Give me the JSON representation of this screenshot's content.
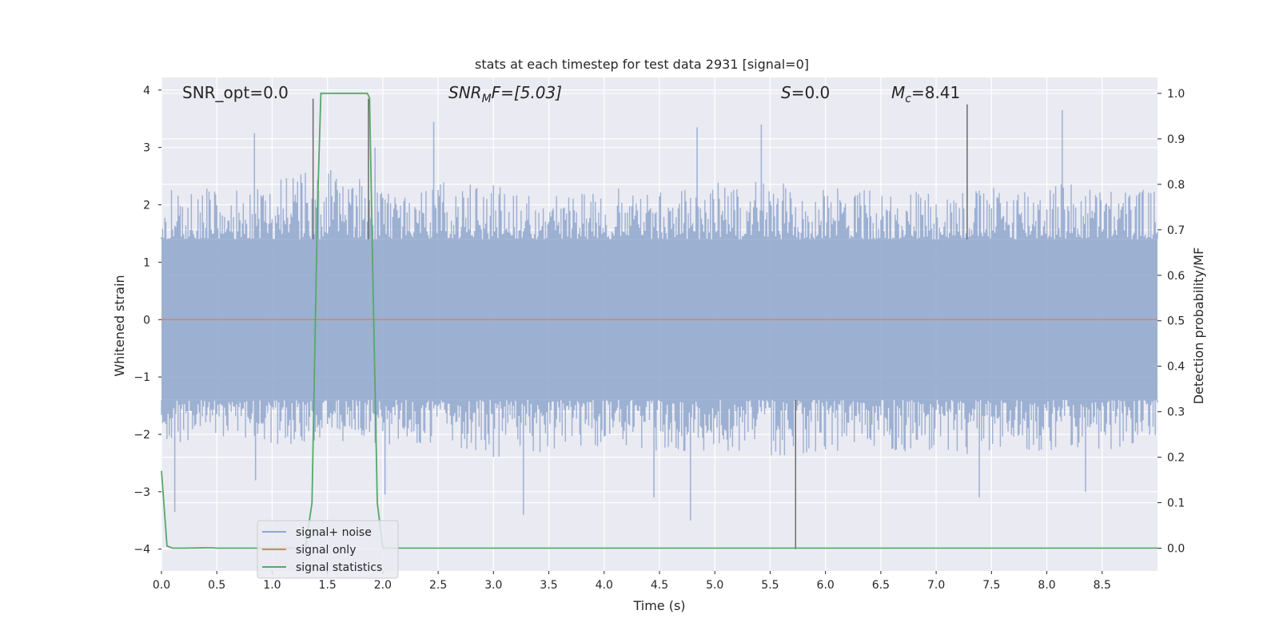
{
  "chart_data": {
    "type": "line",
    "title": "stats at each timestep for test data 2931 [signal=0]",
    "xlabel": "Time (s)",
    "ylabel_left": "Whitened strain",
    "ylabel_right": "Detection probability/MF",
    "xlim": [
      0.0,
      9.0
    ],
    "ylim_left": [
      -4.38,
      4.22
    ],
    "ylim_right": [
      -0.05,
      1.035
    ],
    "grid": true,
    "legend_position": "lower-left",
    "x_ticks": [
      0.0,
      0.5,
      1.0,
      1.5,
      2.0,
      2.5,
      3.0,
      3.5,
      4.0,
      4.5,
      5.0,
      5.5,
      6.0,
      6.5,
      7.0,
      7.5,
      8.0,
      8.5
    ],
    "x_tick_labels": [
      "0.0",
      "0.5",
      "1.0",
      "1.5",
      "2.0",
      "2.5",
      "3.0",
      "3.5",
      "4.0",
      "4.5",
      "5.0",
      "5.5",
      "6.0",
      "6.5",
      "7.0",
      "7.5",
      "8.0",
      "8.5"
    ],
    "y_left_ticks": [
      -4,
      -3,
      -2,
      -1,
      0,
      1,
      2,
      3,
      4
    ],
    "y_left_tick_labels": [
      "−4",
      "−3",
      "−2",
      "−1",
      "0",
      "1",
      "2",
      "3",
      "4"
    ],
    "y_right_ticks": [
      0.0,
      0.1,
      0.2,
      0.3,
      0.4,
      0.5,
      0.6,
      0.7,
      0.8,
      0.9,
      1.0
    ],
    "y_right_tick_labels": [
      "0.0",
      "0.1",
      "0.2",
      "0.3",
      "0.4",
      "0.5",
      "0.6",
      "0.7",
      "0.8",
      "0.9",
      "1.0"
    ],
    "annotations": {
      "snr_opt": "SNR_opt=0.0",
      "snr_mf_main": "SNR",
      "snr_mf_sub": "M",
      "snr_mf_rest": "F=[5.03]",
      "s_var": "S",
      "s_rest": "=0.0",
      "mc_main": "M",
      "mc_sub": "c",
      "mc_rest": "=8.41"
    },
    "series": [
      {
        "name": "signal+ noise",
        "axis": "left",
        "color": "#8fa6cd",
        "envelope": {
          "x": [
            0.0,
            0.5,
            1.0,
            1.5,
            2.0,
            2.5,
            3.0,
            3.5,
            4.0,
            4.5,
            5.0,
            5.5,
            6.0,
            6.5,
            7.0,
            7.5,
            8.0,
            8.5,
            9.0
          ],
          "upper": [
            2.3,
            2.3,
            2.4,
            2.7,
            2.3,
            2.4,
            2.4,
            2.2,
            2.3,
            2.3,
            2.4,
            2.4,
            2.3,
            2.3,
            2.3,
            2.3,
            2.5,
            2.3,
            2.3
          ],
          "lower": [
            -2.2,
            -2.1,
            -2.2,
            -2.1,
            -2.2,
            -2.2,
            -2.4,
            -2.3,
            -2.2,
            -2.3,
            -2.3,
            -2.4,
            -2.3,
            -2.3,
            -2.3,
            -2.4,
            -2.3,
            -2.3,
            -2.2
          ],
          "inner_upper": 1.4,
          "inner_lower": -1.4
        },
        "peaks": [
          {
            "x": 0.12,
            "y": -3.35
          },
          {
            "x": 0.84,
            "y": 3.25
          },
          {
            "x": 0.85,
            "y": -2.8
          },
          {
            "x": 1.37,
            "y": 3.85
          },
          {
            "x": 1.87,
            "y": 3.85
          },
          {
            "x": 1.93,
            "y": 3.0
          },
          {
            "x": 2.02,
            "y": -3.05
          },
          {
            "x": 2.46,
            "y": 3.45
          },
          {
            "x": 3.27,
            "y": -3.4
          },
          {
            "x": 4.45,
            "y": -3.1
          },
          {
            "x": 4.78,
            "y": -3.5
          },
          {
            "x": 4.84,
            "y": 3.35
          },
          {
            "x": 5.42,
            "y": 3.4
          },
          {
            "x": 5.73,
            "y": -4.0
          },
          {
            "x": 7.28,
            "y": 3.75
          },
          {
            "x": 7.39,
            "y": -3.1
          },
          {
            "x": 8.14,
            "y": 3.65
          },
          {
            "x": 8.35,
            "y": -3.0
          }
        ]
      },
      {
        "name": "signal only",
        "axis": "left",
        "color": "#dd8452",
        "x": [
          0.0,
          9.0
        ],
        "y": [
          0.0,
          0.0
        ]
      },
      {
        "name": "signal statistics",
        "axis": "right",
        "color": "#55a868",
        "x": [
          0.0,
          0.05,
          0.1,
          0.2,
          0.4,
          0.45,
          0.5,
          1.3,
          1.36,
          1.41,
          1.44,
          1.5,
          1.8,
          1.86,
          1.88,
          1.91,
          1.95,
          2.0,
          2.5,
          9.0
        ],
        "y": [
          0.17,
          0.005,
          0.0,
          0.0,
          0.001,
          0.001,
          0.0,
          0.0,
          0.1,
          0.75,
          1.0,
          1.0,
          1.0,
          1.0,
          0.99,
          0.6,
          0.1,
          0.0,
          0.0,
          0.0
        ]
      }
    ]
  }
}
